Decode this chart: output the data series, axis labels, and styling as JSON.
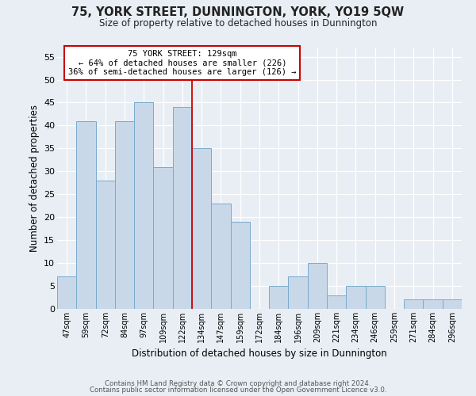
{
  "title": "75, YORK STREET, DUNNINGTON, YORK, YO19 5QW",
  "subtitle": "Size of property relative to detached houses in Dunnington",
  "xlabel": "Distribution of detached houses by size in Dunnington",
  "ylabel": "Number of detached properties",
  "bar_labels": [
    "47sqm",
    "59sqm",
    "72sqm",
    "84sqm",
    "97sqm",
    "109sqm",
    "122sqm",
    "134sqm",
    "147sqm",
    "159sqm",
    "172sqm",
    "184sqm",
    "196sqm",
    "209sqm",
    "221sqm",
    "234sqm",
    "246sqm",
    "259sqm",
    "271sqm",
    "284sqm",
    "296sqm"
  ],
  "bar_values": [
    7,
    41,
    28,
    41,
    45,
    31,
    44,
    35,
    23,
    19,
    0,
    5,
    7,
    10,
    3,
    5,
    5,
    0,
    2,
    2,
    2
  ],
  "bar_color": "#c8d8e8",
  "bar_edgecolor": "#7aaacc",
  "marker_label": "75 YORK STREET: 129sqm",
  "annotation_line1": "← 64% of detached houses are smaller (226)",
  "annotation_line2": "36% of semi-detached houses are larger (126) →",
  "annotation_box_color": "white",
  "annotation_box_edgecolor": "#cc0000",
  "vline_color": "#cc0000",
  "vline_x": 6.5,
  "ylim": [
    0,
    57
  ],
  "yticks": [
    0,
    5,
    10,
    15,
    20,
    25,
    30,
    35,
    40,
    45,
    50,
    55
  ],
  "bg_color": "#e8eef4",
  "grid_color": "white",
  "footer1": "Contains HM Land Registry data © Crown copyright and database right 2024.",
  "footer2": "Contains public sector information licensed under the Open Government Licence v3.0."
}
